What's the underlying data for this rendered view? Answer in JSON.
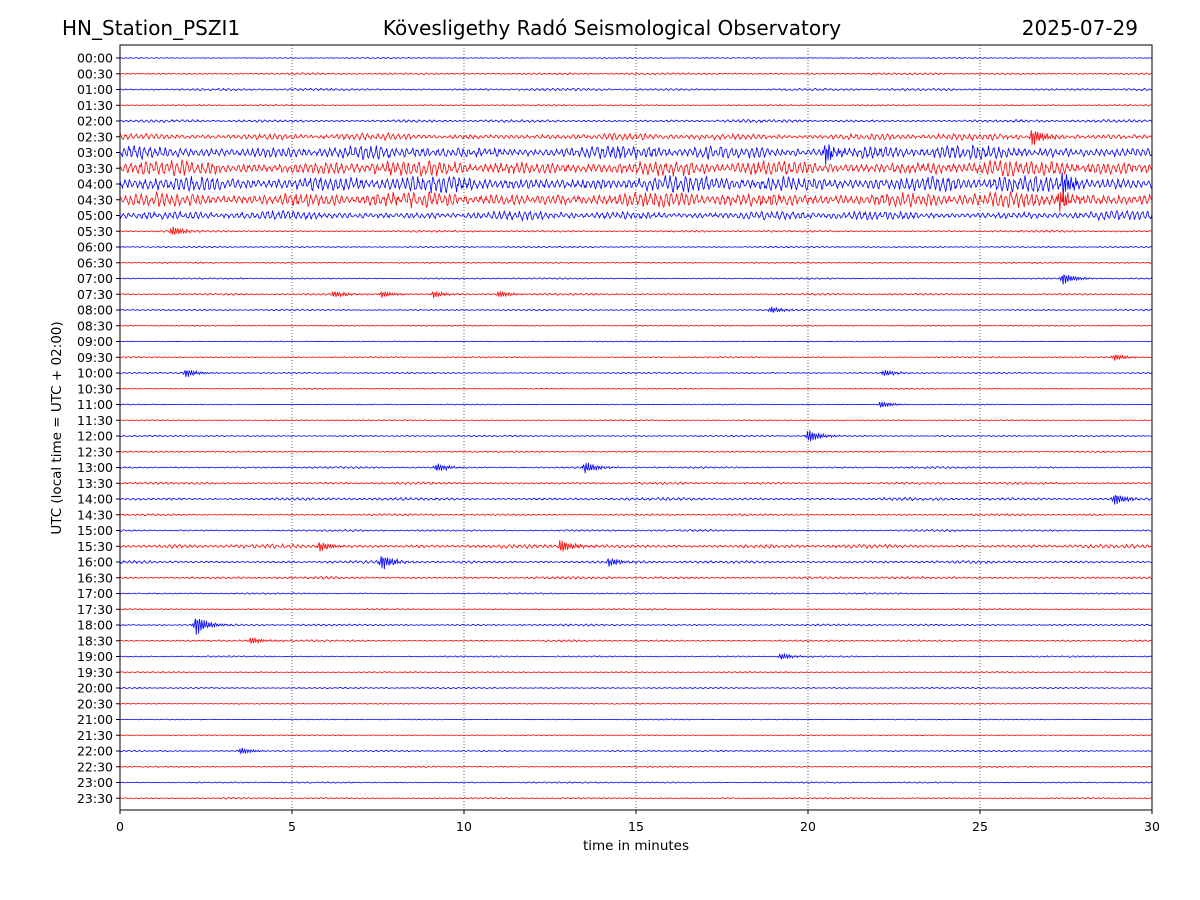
{
  "header": {
    "station": "HN_Station_PSZI1",
    "observatory": "Kövesligethy Radó Seismological Observatory",
    "date": "2025-07-29"
  },
  "chart_data": {
    "type": "line",
    "title": "Kövesligethy Radó Seismological Observatory",
    "xlabel": "time in minutes",
    "ylabel": "UTC (local time = UTC + 02:00)",
    "xlim": [
      0,
      30
    ],
    "xticks": [
      0,
      5,
      10,
      15,
      20,
      25,
      30
    ],
    "grid": "vertical dotted lines every 5 minutes",
    "rows": [
      "00:00",
      "00:30",
      "01:00",
      "01:30",
      "02:00",
      "02:30",
      "03:00",
      "03:30",
      "04:00",
      "04:30",
      "05:00",
      "05:30",
      "06:00",
      "06:30",
      "07:00",
      "07:30",
      "08:00",
      "08:30",
      "09:00",
      "09:30",
      "10:00",
      "10:30",
      "11:00",
      "11:30",
      "12:00",
      "12:30",
      "13:00",
      "13:30",
      "14:00",
      "14:30",
      "15:00",
      "15:30",
      "16:00",
      "16:30",
      "17:00",
      "17:30",
      "18:00",
      "18:30",
      "19:00",
      "19:30",
      "20:00",
      "20:30",
      "21:00",
      "21:30",
      "22:00",
      "22:30",
      "23:00",
      "23:30"
    ],
    "row_colors": [
      "#0000ff",
      "#ff0000"
    ],
    "trace_amplitude": [
      0.1,
      0.2,
      0.25,
      0.15,
      0.3,
      0.7,
      1.4,
      1.6,
      1.7,
      1.6,
      0.9,
      0.2,
      0.15,
      0.15,
      0.15,
      0.2,
      0.15,
      0.1,
      0.1,
      0.15,
      0.15,
      0.1,
      0.1,
      0.1,
      0.15,
      0.15,
      0.2,
      0.25,
      0.3,
      0.2,
      0.2,
      0.4,
      0.3,
      0.25,
      0.15,
      0.15,
      0.2,
      0.2,
      0.15,
      0.15,
      0.15,
      0.1,
      0.1,
      0.1,
      0.15,
      0.15,
      0.15,
      0.15
    ],
    "events": [
      {
        "row": "02:30",
        "minute": 26.5,
        "amplitude": 1.0
      },
      {
        "row": "03:00",
        "minute": 20.5,
        "amplitude": 1.2
      },
      {
        "row": "04:00",
        "minute": 27.4,
        "amplitude": 1.5
      },
      {
        "row": "04:30",
        "minute": 27.3,
        "amplitude": 1.3
      },
      {
        "row": "05:30",
        "minute": 1.5,
        "amplitude": 0.6
      },
      {
        "row": "07:00",
        "minute": 27.4,
        "amplitude": 0.7
      },
      {
        "row": "07:30",
        "minute": 6.2,
        "amplitude": 0.4
      },
      {
        "row": "07:30",
        "minute": 7.6,
        "amplitude": 0.4
      },
      {
        "row": "07:30",
        "minute": 9.1,
        "amplitude": 0.4
      },
      {
        "row": "07:30",
        "minute": 11.0,
        "amplitude": 0.4
      },
      {
        "row": "08:00",
        "minute": 18.9,
        "amplitude": 0.4
      },
      {
        "row": "09:30",
        "minute": 28.9,
        "amplitude": 0.4
      },
      {
        "row": "10:00",
        "minute": 1.9,
        "amplitude": 0.5
      },
      {
        "row": "10:00",
        "minute": 22.2,
        "amplitude": 0.4
      },
      {
        "row": "11:00",
        "minute": 22.1,
        "amplitude": 0.4
      },
      {
        "row": "12:00",
        "minute": 20.0,
        "amplitude": 0.8
      },
      {
        "row": "13:00",
        "minute": 13.5,
        "amplitude": 0.7
      },
      {
        "row": "13:00",
        "minute": 9.2,
        "amplitude": 0.5
      },
      {
        "row": "14:00",
        "minute": 28.9,
        "amplitude": 0.7
      },
      {
        "row": "15:30",
        "minute": 5.8,
        "amplitude": 0.6
      },
      {
        "row": "15:30",
        "minute": 12.8,
        "amplitude": 0.8
      },
      {
        "row": "16:00",
        "minute": 7.6,
        "amplitude": 0.9
      },
      {
        "row": "16:00",
        "minute": 14.2,
        "amplitude": 0.5
      },
      {
        "row": "18:00",
        "minute": 2.2,
        "amplitude": 1.2
      },
      {
        "row": "18:30",
        "minute": 3.8,
        "amplitude": 0.4
      },
      {
        "row": "19:00",
        "minute": 19.2,
        "amplitude": 0.4
      },
      {
        "row": "22:00",
        "minute": 3.5,
        "amplitude": 0.4
      }
    ]
  }
}
